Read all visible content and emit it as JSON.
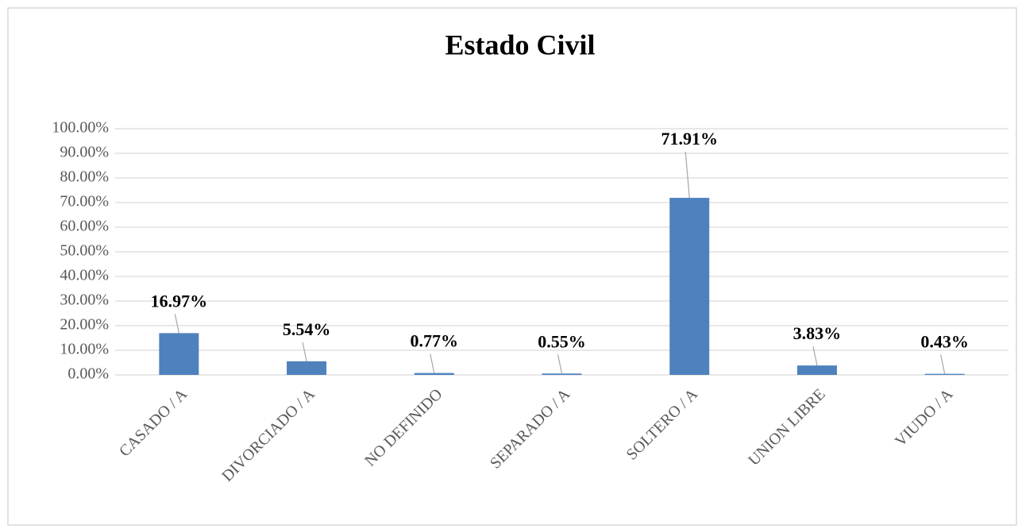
{
  "chart_data": {
    "type": "bar",
    "title": "Estado Civil",
    "categories": [
      "CASADO / A",
      "DIVORCIADO / A",
      "NO DEFINIDO",
      "SEPARADO / A",
      "SOLTERO / A",
      "UNION LIBRE",
      "VIUDO / A"
    ],
    "values": [
      16.97,
      5.54,
      0.77,
      0.55,
      71.91,
      3.83,
      0.43
    ],
    "value_labels": [
      "16.97%",
      "5.54%",
      "0.77%",
      "0.55%",
      "71.91%",
      "3.83%",
      "0.43%"
    ],
    "color": "#4f81bd",
    "ylim": [
      0,
      100
    ],
    "yticks": [
      {
        "value": 0,
        "label": "0.00%"
      },
      {
        "value": 10,
        "label": "10.00%"
      },
      {
        "value": 20,
        "label": "20.00%"
      },
      {
        "value": 30,
        "label": "30.00%"
      },
      {
        "value": 40,
        "label": "40.00%"
      },
      {
        "value": 50,
        "label": "50.00%"
      },
      {
        "value": 60,
        "label": "60.00%"
      },
      {
        "value": 70,
        "label": "70.00%"
      },
      {
        "value": 80,
        "label": "80.00%"
      },
      {
        "value": 90,
        "label": "90.00%"
      },
      {
        "value": 100,
        "label": "100.00%"
      }
    ],
    "grid": true
  }
}
